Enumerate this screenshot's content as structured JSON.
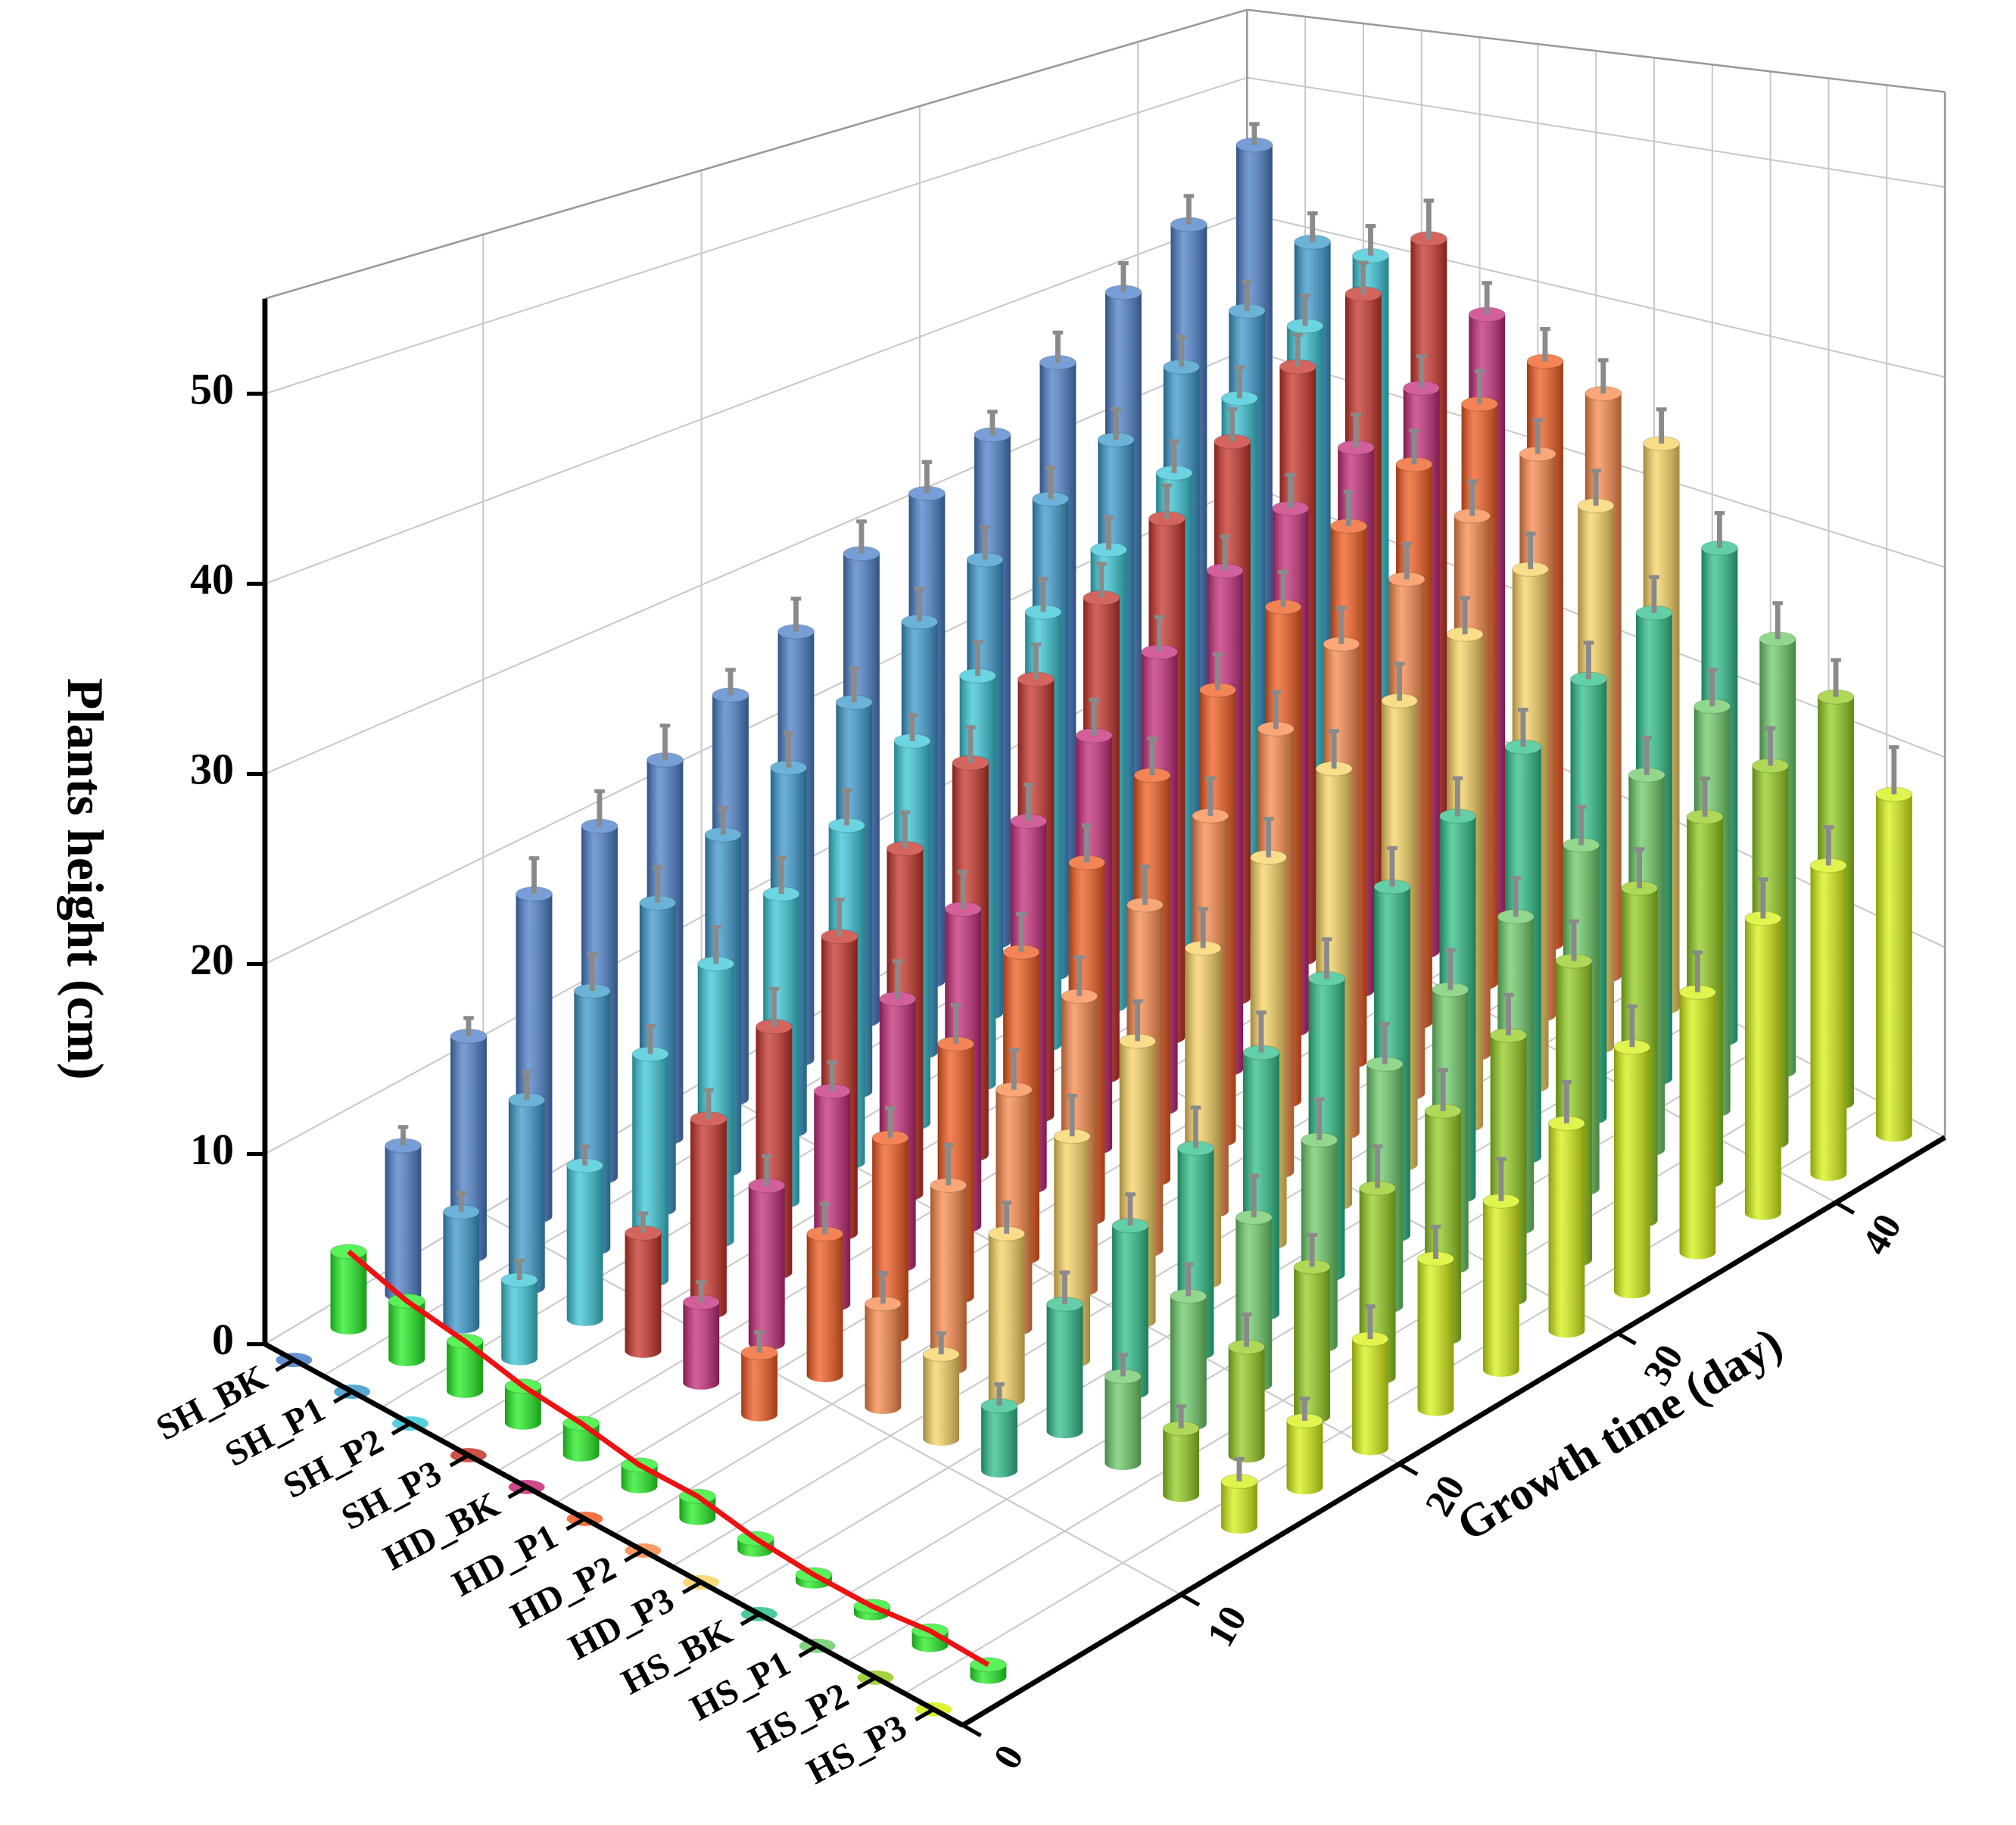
{
  "chart_data": {
    "type": "bar3d",
    "zlabel": "Plants height (cm)",
    "xlabel": "Growth time (day)",
    "categories": [
      "SH_BK",
      "SH_P1",
      "SH_P2",
      "SH_P3",
      "HD_BK",
      "HD_P1",
      "HD_P2",
      "HD_P3",
      "HS_BK",
      "HS_P1",
      "HS_P2",
      "HS_P3"
    ],
    "x": [
      5,
      8,
      11,
      14,
      17,
      20,
      23,
      26,
      29,
      32,
      35,
      38,
      41,
      44
    ],
    "xlim": [
      0,
      45
    ],
    "xticks": [
      0,
      10,
      20,
      30,
      40
    ],
    "zlim": [
      0,
      55
    ],
    "zticks": [
      0,
      10,
      20,
      30,
      40,
      50
    ],
    "grid": true,
    "series": [
      {
        "color": "#4a7ec8",
        "values": [
          8,
          12,
          18,
          20,
          22,
          24,
          26,
          29,
          31,
          33,
          36,
          39,
          42,
          46
        ],
        "errors": [
          1,
          1,
          2,
          2,
          2,
          1.5,
          2,
          2,
          2,
          1.5,
          2,
          2,
          2,
          1.5
        ]
      },
      {
        "color": "#3a98cc",
        "values": [
          6,
          10,
          14,
          17,
          19,
          21,
          23,
          26,
          28,
          30,
          32,
          35,
          37,
          40
        ],
        "errors": [
          1,
          1.5,
          2,
          2,
          1.5,
          2,
          2,
          2,
          2,
          2,
          2,
          2,
          2,
          2
        ]
      },
      {
        "color": "#38c6d6",
        "values": [
          4,
          8,
          12,
          15,
          17,
          19,
          22,
          24,
          26,
          28,
          31,
          34,
          37,
          40
        ],
        "errors": [
          1,
          1,
          1.5,
          2,
          2,
          2,
          1.5,
          2,
          2,
          2,
          2,
          2,
          2,
          2
        ]
      },
      {
        "color": "#c63228",
        "values": [
          null,
          6,
          10,
          13,
          16,
          19,
          22,
          25,
          28,
          31,
          34,
          37,
          40,
          42
        ],
        "errors": [
          null,
          1,
          1.5,
          2,
          2,
          2,
          2,
          2,
          2,
          2,
          2,
          2,
          2,
          2.5
        ]
      },
      {
        "color": "#c42a78",
        "values": [
          null,
          4,
          8,
          11,
          14,
          17,
          20,
          23,
          26,
          29,
          31,
          33,
          35,
          38
        ],
        "errors": [
          null,
          1,
          1.5,
          1.5,
          2,
          2,
          2,
          2,
          2,
          2,
          2,
          2,
          2,
          2
        ]
      },
      {
        "color": "#f05a1e",
        "values": [
          null,
          3,
          7,
          10,
          13,
          16,
          19,
          22,
          25,
          28,
          31,
          33,
          35,
          36
        ],
        "errors": [
          null,
          1,
          1.5,
          1.5,
          2,
          2,
          2,
          2,
          2,
          2,
          2,
          2,
          2,
          2
        ]
      },
      {
        "color": "#f8884a",
        "values": [
          null,
          null,
          5,
          9,
          12,
          15,
          18,
          21,
          24,
          27,
          29,
          31,
          33,
          35
        ],
        "errors": [
          null,
          null,
          1.5,
          2,
          2,
          2,
          2,
          2,
          2,
          2,
          2,
          2,
          2,
          2
        ]
      },
      {
        "color": "#f8d262",
        "values": [
          null,
          null,
          4,
          8,
          11,
          14,
          17,
          20,
          23,
          25,
          27,
          29,
          31,
          33
        ],
        "errors": [
          null,
          null,
          1,
          1.5,
          2,
          2,
          2,
          2,
          2,
          2,
          2,
          2,
          2,
          2
        ]
      },
      {
        "color": "#2ebf88",
        "values": [
          null,
          null,
          3,
          6,
          8,
          10,
          13,
          15,
          18,
          20,
          22,
          24,
          26,
          28
        ],
        "errors": [
          null,
          null,
          1,
          1.5,
          1.5,
          2,
          2,
          2,
          2,
          2,
          2,
          2,
          2,
          2
        ]
      },
      {
        "color": "#6ccb68",
        "values": [
          null,
          null,
          null,
          4,
          6,
          8,
          10,
          12,
          14,
          16,
          18,
          20,
          22,
          24
        ],
        "errors": [
          null,
          null,
          null,
          1,
          1.5,
          2,
          2,
          2,
          2,
          2,
          2,
          2,
          2,
          2
        ]
      },
      {
        "color": "#92cc1e",
        "values": [
          null,
          null,
          null,
          3,
          5,
          7,
          9,
          11,
          13,
          15,
          17,
          19,
          20,
          22
        ],
        "errors": [
          null,
          null,
          null,
          1,
          1.5,
          1.5,
          2,
          2,
          2,
          2,
          2,
          2,
          2,
          2
        ]
      },
      {
        "color": "#d6f012",
        "values": [
          null,
          null,
          null,
          2,
          3,
          5,
          7,
          8,
          10,
          12,
          13,
          15,
          16,
          18
        ],
        "errors": [
          null,
          null,
          null,
          1,
          1,
          1.5,
          1.5,
          2,
          2,
          2,
          2,
          2,
          2,
          2.5
        ]
      }
    ],
    "front_series": {
      "x": 2.5,
      "color": "#22ee22",
      "line_color": "#ee1111",
      "values": [
        4,
        3,
        2.5,
        1.8,
        1.5,
        1,
        1,
        0.5,
        0.3,
        0.3,
        0.6,
        0.5
      ]
    }
  }
}
